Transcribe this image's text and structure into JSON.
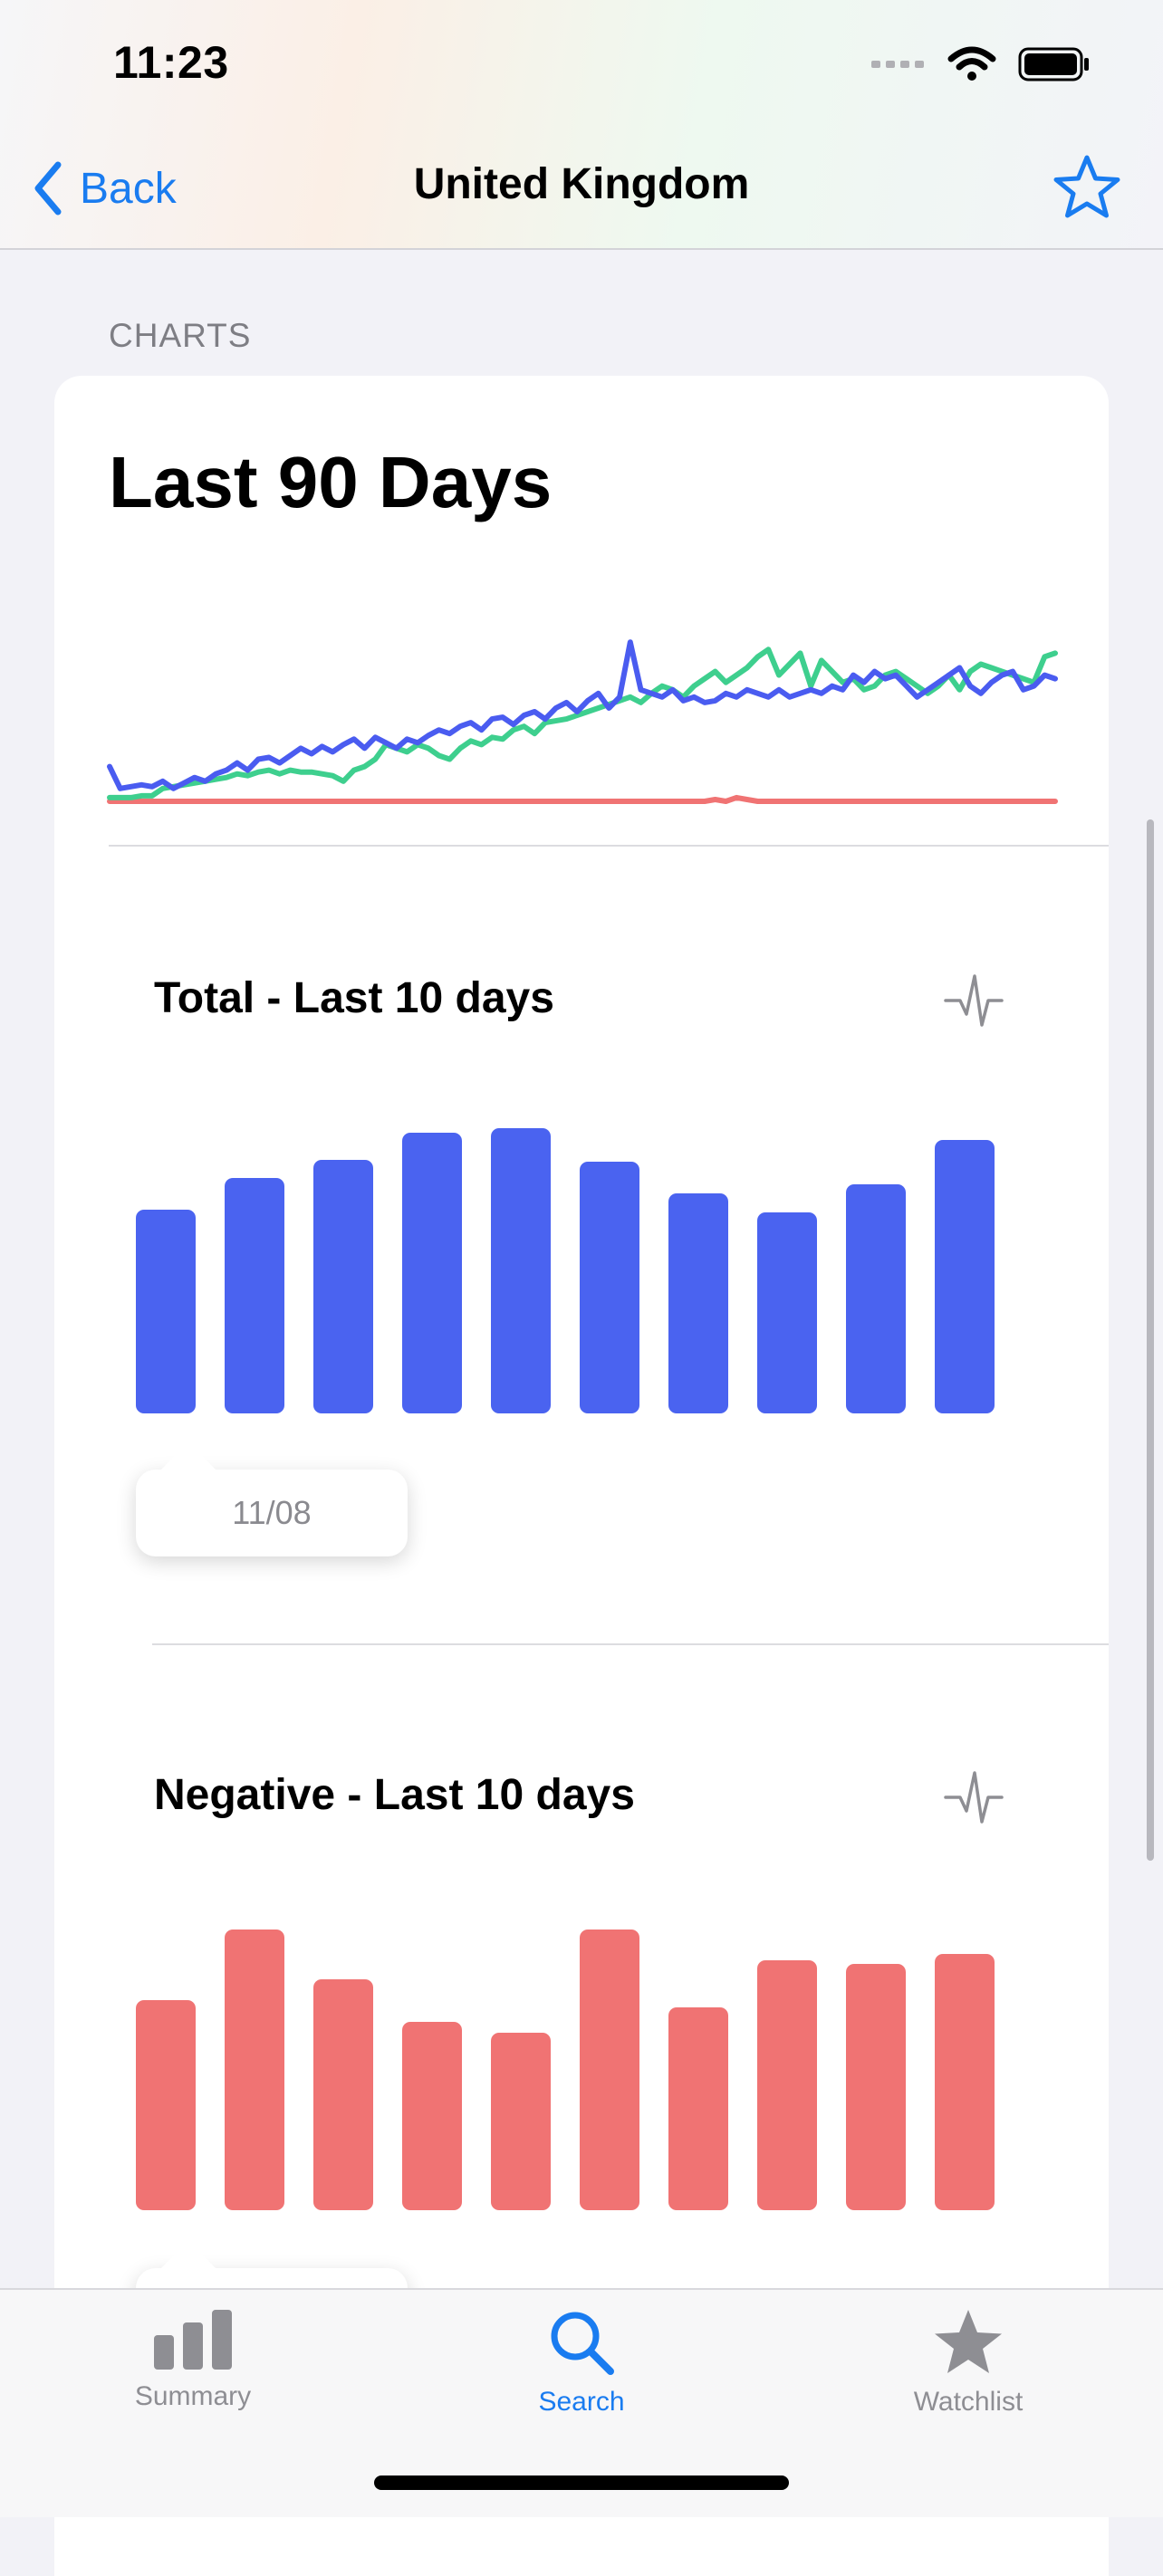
{
  "status_bar": {
    "time": "11:23"
  },
  "nav": {
    "back_label": "Back",
    "title": "United Kingdom"
  },
  "section": {
    "label": "CHARTS"
  },
  "card": {
    "title": "Last 90 Days"
  },
  "chart_data": [
    {
      "type": "line",
      "title": "Last 90 Days",
      "x_count": 90,
      "series": [
        {
          "color": "#4a5cf0",
          "values": [
            20,
            8,
            9,
            10,
            9,
            12,
            8,
            11,
            14,
            12,
            16,
            18,
            22,
            18,
            24,
            25,
            22,
            26,
            30,
            27,
            31,
            28,
            32,
            35,
            30,
            36,
            33,
            30,
            35,
            33,
            37,
            40,
            38,
            42,
            44,
            40,
            46,
            47,
            43,
            48,
            50,
            46,
            52,
            55,
            50,
            56,
            60,
            52,
            58,
            88,
            62,
            60,
            58,
            62,
            56,
            58,
            55,
            56,
            60,
            58,
            62,
            60,
            58,
            62,
            58,
            60,
            62,
            60,
            64,
            62,
            70,
            66,
            72,
            68,
            70,
            64,
            58,
            62,
            66,
            70,
            74,
            64,
            60,
            66,
            70,
            72,
            62,
            64,
            70,
            68
          ]
        },
        {
          "color": "#3ecf8e",
          "values": [
            3,
            3,
            3,
            4,
            4,
            8,
            9,
            10,
            11,
            12,
            13,
            14,
            16,
            15,
            17,
            18,
            16,
            18,
            17,
            17,
            16,
            15,
            12,
            18,
            20,
            24,
            32,
            30,
            28,
            32,
            30,
            26,
            24,
            30,
            34,
            32,
            36,
            35,
            40,
            42,
            38,
            44,
            45,
            46,
            48,
            50,
            52,
            54,
            56,
            58,
            55,
            60,
            64,
            62,
            58,
            64,
            68,
            72,
            66,
            70,
            74,
            80,
            84,
            70,
            76,
            82,
            64,
            78,
            72,
            66,
            68,
            62,
            64,
            70,
            72,
            68,
            64,
            60,
            64,
            70,
            62,
            72,
            76,
            74,
            72,
            70,
            68,
            66,
            80,
            82
          ]
        },
        {
          "color": "#f07373",
          "values": [
            1,
            1,
            1,
            1,
            1,
            1,
            1,
            1,
            1,
            1,
            1,
            1,
            1,
            1,
            1,
            1,
            1,
            1,
            1,
            1,
            1,
            1,
            1,
            1,
            1,
            1,
            1,
            1,
            1,
            1,
            1,
            1,
            1,
            1,
            1,
            1,
            1,
            1,
            1,
            1,
            1,
            1,
            1,
            1,
            1,
            1,
            1,
            1,
            1,
            1,
            1,
            1,
            1,
            1,
            1,
            1,
            1,
            2,
            1,
            3,
            2,
            1,
            1,
            1,
            1,
            1,
            1,
            1,
            1,
            1,
            1,
            1,
            1,
            1,
            1,
            1,
            1,
            1,
            1,
            1,
            1,
            1,
            1,
            1,
            1,
            1,
            1,
            1,
            1,
            1
          ]
        }
      ]
    },
    {
      "type": "bar",
      "title": "Total - Last 10 days",
      "color": "#4a63f0",
      "values": [
        225,
        260,
        280,
        310,
        315,
        278,
        243,
        222,
        253,
        302
      ],
      "ylim": [
        0,
        320
      ],
      "tooltip": "11/08"
    },
    {
      "type": "bar",
      "title": "Negative - Last 10 days",
      "color": "#f07373",
      "values": [
        232,
        310,
        255,
        208,
        196,
        310,
        224,
        276,
        272,
        283
      ],
      "ylim": [
        0,
        320
      ]
    }
  ],
  "tabs": [
    {
      "label": "Summary",
      "icon": "bar-chart-icon",
      "active": false
    },
    {
      "label": "Search",
      "icon": "magnifier-icon",
      "active": true
    },
    {
      "label": "Watchlist",
      "icon": "star-filled-icon",
      "active": false
    }
  ],
  "colors": {
    "accent": "#1a7cf0",
    "inactive": "#8e8e93"
  }
}
